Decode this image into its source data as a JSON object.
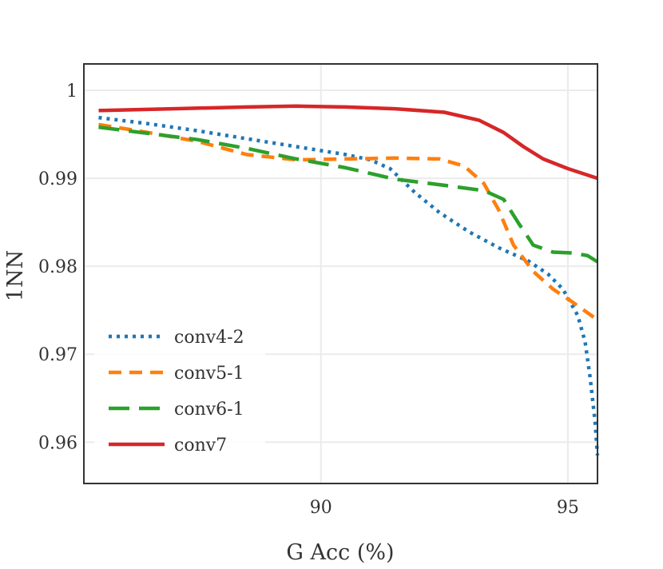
{
  "chart_data": {
    "type": "line",
    "title": "",
    "xlabel": "G Acc (%)",
    "ylabel": "1NN",
    "xlim": [
      85.2,
      95.6
    ],
    "ylim": [
      0.9553,
      1.003
    ],
    "xticks": [
      90,
      95
    ],
    "xtick_labels": [
      "90",
      "95"
    ],
    "yticks": [
      0.96,
      0.97,
      0.98,
      0.99,
      1.0
    ],
    "ytick_labels": [
      "0.96",
      "0.97",
      "0.98",
      "0.99",
      "1"
    ],
    "grid": true,
    "legend_position": "lower-left",
    "series": [
      {
        "name": "conv4-2",
        "color": "#1f77b4",
        "style": "dotted",
        "points": [
          [
            85.5,
            0.9969
          ],
          [
            86.5,
            0.9962
          ],
          [
            87.5,
            0.9954
          ],
          [
            88.5,
            0.9945
          ],
          [
            89.5,
            0.9936
          ],
          [
            90.5,
            0.9927
          ],
          [
            91.0,
            0.9921
          ],
          [
            91.4,
            0.9911
          ],
          [
            91.9,
            0.9884
          ],
          [
            92.4,
            0.9861
          ],
          [
            93.0,
            0.9839
          ],
          [
            93.6,
            0.9821
          ],
          [
            94.2,
            0.9806
          ],
          [
            94.6,
            0.9791
          ],
          [
            94.9,
            0.9774
          ],
          [
            95.2,
            0.9744
          ],
          [
            95.35,
            0.9714
          ],
          [
            95.45,
            0.9674
          ],
          [
            95.55,
            0.9624
          ],
          [
            95.6,
            0.9585
          ]
        ]
      },
      {
        "name": "conv5-1",
        "color": "#ff7f0e",
        "style": "dashed",
        "points": [
          [
            85.5,
            0.9961
          ],
          [
            86.5,
            0.9952
          ],
          [
            87.5,
            0.9942
          ],
          [
            88.5,
            0.9927
          ],
          [
            89.5,
            0.9921
          ],
          [
            90.5,
            0.9922
          ],
          [
            91.5,
            0.9923
          ],
          [
            92.4,
            0.9922
          ],
          [
            92.9,
            0.9914
          ],
          [
            93.3,
            0.9894
          ],
          [
            93.6,
            0.9864
          ],
          [
            93.9,
            0.9824
          ],
          [
            94.3,
            0.9794
          ],
          [
            94.7,
            0.9774
          ],
          [
            95.1,
            0.9759
          ],
          [
            95.6,
            0.9739
          ]
        ]
      },
      {
        "name": "conv6-1",
        "color": "#2ca02c",
        "style": "longdash",
        "points": [
          [
            85.5,
            0.9958
          ],
          [
            86.5,
            0.9951
          ],
          [
            87.5,
            0.9944
          ],
          [
            88.5,
            0.9934
          ],
          [
            89.5,
            0.9922
          ],
          [
            90.5,
            0.9912
          ],
          [
            91.5,
            0.9899
          ],
          [
            92.5,
            0.9892
          ],
          [
            93.3,
            0.9886
          ],
          [
            93.7,
            0.9876
          ],
          [
            94.0,
            0.9849
          ],
          [
            94.3,
            0.9824
          ],
          [
            94.7,
            0.9816
          ],
          [
            95.1,
            0.9815
          ],
          [
            95.4,
            0.9812
          ],
          [
            95.6,
            0.9805
          ]
        ]
      },
      {
        "name": "conv7",
        "color": "#d62728",
        "style": "solid",
        "points": [
          [
            85.5,
            0.9977
          ],
          [
            87.0,
            0.9979
          ],
          [
            88.5,
            0.9981
          ],
          [
            89.5,
            0.9982
          ],
          [
            90.5,
            0.9981
          ],
          [
            91.5,
            0.9979
          ],
          [
            92.5,
            0.9975
          ],
          [
            93.2,
            0.9966
          ],
          [
            93.7,
            0.9952
          ],
          [
            94.1,
            0.9936
          ],
          [
            94.5,
            0.9922
          ],
          [
            95.0,
            0.9911
          ],
          [
            95.6,
            0.99
          ]
        ]
      }
    ]
  }
}
